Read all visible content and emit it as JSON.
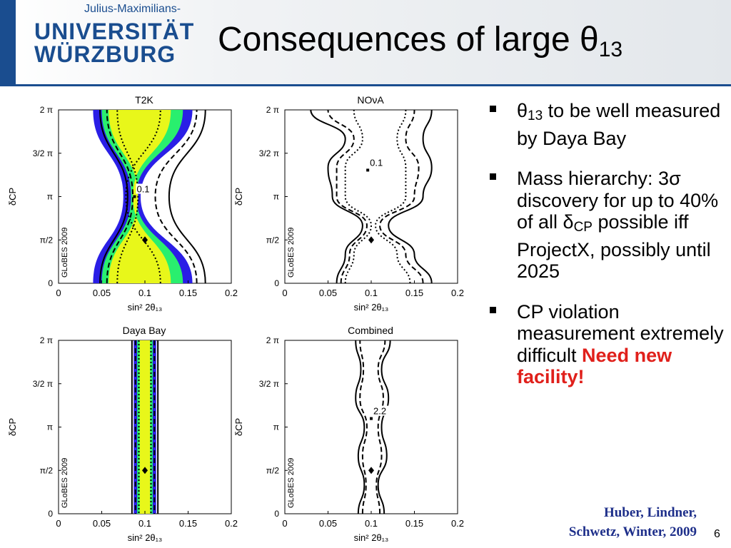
{
  "header": {
    "logo_sub": "Julius-Maximilians-",
    "logo_line1": "UNIVERSITÄT",
    "logo_line2": "WÜRZBURG",
    "title_main": "Consequences of large θ",
    "title_sub": "13"
  },
  "bullets": [
    {
      "parts": [
        {
          "t": "θ"
        },
        {
          "t": "13",
          "sub": true
        },
        {
          "t": " to be well measured by Daya Bay"
        }
      ]
    },
    {
      "parts": [
        {
          "t": "Mass hierarchy: 3σ discovery for up to 40% of all δ"
        },
        {
          "t": "CP",
          "sub": true
        },
        {
          "t": " possible iff ProjectX, possibly until 2025"
        }
      ]
    },
    {
      "parts": [
        {
          "t": "CP violation measurement extremely difficult "
        },
        {
          "t": "Need new facility!",
          "red": true
        }
      ]
    }
  ],
  "citation": {
    "line1": "Huber, Lindner,",
    "line2": "Schwetz, Winter, 2009"
  },
  "page_number": "6",
  "colors": {
    "blue": "#2a1ee6",
    "green": "#29ef6e",
    "yellow": "#e8f71a",
    "accent": "#1a4d8f",
    "highlight": "#e0201b"
  },
  "chart_data": [
    {
      "type": "contour",
      "title": "T2K",
      "xlabel": "sin² 2θ₁₃",
      "ylabel": "δCP",
      "xlim": [
        0,
        0.2
      ],
      "ylim": [
        0,
        6.2832
      ],
      "xticks": [
        "0",
        "0.05",
        "0.1",
        "0.15",
        "0.2"
      ],
      "yticks": [
        "0",
        "π/2",
        "π",
        "3/2 π",
        "2 π"
      ],
      "watermark": "GLoBES 2009",
      "true_value": {
        "x": 0.1,
        "y": 1.5708
      },
      "annotation": {
        "label": "0.1",
        "x": 0.088,
        "y": 3.14
      },
      "regions": [
        {
          "fill": "blue",
          "left": [
            0.04,
            0.075,
            0.04
          ],
          "right": [
            0.155,
            0.095,
            0.155
          ]
        },
        {
          "fill": "green",
          "left": [
            0.05,
            0.084,
            0.05
          ],
          "right": [
            0.144,
            0.09,
            0.144
          ]
        },
        {
          "fill": "yellow",
          "left": [
            0.058,
            0.092,
            0.058
          ],
          "right": [
            0.13,
            0.086,
            0.13
          ]
        }
      ],
      "lines": [
        {
          "style": "dotted",
          "x": [
            0.068,
            0.092,
            0.068
          ]
        },
        {
          "style": "dotted",
          "x": [
            0.118,
            0.078,
            0.118
          ]
        },
        {
          "style": "dashed",
          "x": [
            0.056,
            0.086,
            0.056
          ]
        },
        {
          "style": "dashed",
          "x": [
            0.16,
            0.112,
            0.16
          ]
        },
        {
          "style": "solid",
          "x": [
            0.048,
            0.08,
            0.048
          ]
        },
        {
          "style": "solid",
          "x": [
            0.17,
            0.128,
            0.17
          ]
        }
      ]
    },
    {
      "type": "contour",
      "title": "NOνA",
      "xlabel": "sin² 2θ₁₃",
      "ylabel": "δCP",
      "xlim": [
        0,
        0.2
      ],
      "ylim": [
        0,
        6.2832
      ],
      "xticks": [
        "0",
        "0.05",
        "0.1",
        "0.15",
        "0.2"
      ],
      "yticks": [
        "0",
        "π/2",
        "π",
        "3/2 π",
        "2 π"
      ],
      "watermark": "GLoBES 2009",
      "true_value": {
        "x": 0.1,
        "y": 1.5708
      },
      "annotation": {
        "label": "0.1",
        "x": 0.096,
        "y": 4.1
      },
      "lines": [
        {
          "style": "solid",
          "x": [
            0.06,
            0.07,
            0.09,
            0.055,
            0.05,
            0.07,
            0.03
          ]
        },
        {
          "style": "solid",
          "x": [
            0.17,
            0.15,
            0.12,
            0.16,
            0.17,
            0.16,
            0.17
          ]
        },
        {
          "style": "dashed",
          "x": [
            0.065,
            0.075,
            0.095,
            0.06,
            0.06,
            0.08,
            0.05
          ]
        },
        {
          "style": "dashed",
          "x": [
            0.16,
            0.14,
            0.11,
            0.15,
            0.155,
            0.14,
            0.15
          ]
        },
        {
          "style": "dotted",
          "x": [
            0.07,
            0.08,
            0.1,
            0.07,
            0.07,
            0.09,
            0.08
          ]
        },
        {
          "style": "dotted",
          "x": [
            0.145,
            0.13,
            0.105,
            0.14,
            0.14,
            0.13,
            0.14
          ]
        }
      ]
    },
    {
      "type": "contour",
      "title": "Daya Bay",
      "xlabel": "sin² 2θ₁₃",
      "ylabel": "δCP",
      "xlim": [
        0,
        0.2
      ],
      "ylim": [
        0,
        6.2832
      ],
      "xticks": [
        "0",
        "0.05",
        "0.1",
        "0.15",
        "0.2"
      ],
      "yticks": [
        "0",
        "π/2",
        "π",
        "3/2 π",
        "2 π"
      ],
      "watermark": "GLoBES 2009",
      "true_value": {
        "x": 0.1,
        "y": 1.5708
      },
      "bands": [
        {
          "fill": "blue",
          "x": [
            0.087,
            0.113
          ]
        },
        {
          "fill": "green",
          "x": [
            0.091,
            0.109
          ]
        },
        {
          "fill": "yellow",
          "x": [
            0.094,
            0.106
          ]
        }
      ],
      "vlines": [
        {
          "style": "solid",
          "x": 0.085
        },
        {
          "style": "solid",
          "x": 0.115
        },
        {
          "style": "dashed",
          "x": 0.089
        },
        {
          "style": "dashed",
          "x": 0.111
        },
        {
          "style": "dotted",
          "x": 0.093
        },
        {
          "style": "dotted",
          "x": 0.107
        }
      ]
    },
    {
      "type": "contour",
      "title": "Combined",
      "xlabel": "sin² 2θ₁₃",
      "ylabel": "δCP",
      "xlim": [
        0,
        0.2
      ],
      "ylim": [
        0,
        6.2832
      ],
      "xticks": [
        "0",
        "0.05",
        "0.1",
        "0.15",
        "0.2"
      ],
      "yticks": [
        "0",
        "π/2",
        "π",
        "3/2 π",
        "2 π"
      ],
      "watermark": "GLoBES 2009",
      "true_value": {
        "x": 0.1,
        "y": 1.5708
      },
      "annotation": {
        "label": "2.2",
        "x": 0.1,
        "y": 3.45
      },
      "lines": [
        {
          "style": "solid",
          "x": [
            0.085,
            0.092,
            0.085,
            0.092,
            0.082,
            0.088,
            0.082
          ]
        },
        {
          "style": "solid",
          "x": [
            0.115,
            0.108,
            0.118,
            0.112,
            0.12,
            0.112,
            0.122
          ]
        },
        {
          "style": "dashed",
          "x": [
            0.09,
            0.094,
            0.09,
            0.095,
            0.087,
            0.091,
            0.087
          ]
        },
        {
          "style": "dashed",
          "x": [
            0.11,
            0.106,
            0.112,
            0.108,
            0.114,
            0.108,
            0.116
          ]
        }
      ]
    }
  ]
}
